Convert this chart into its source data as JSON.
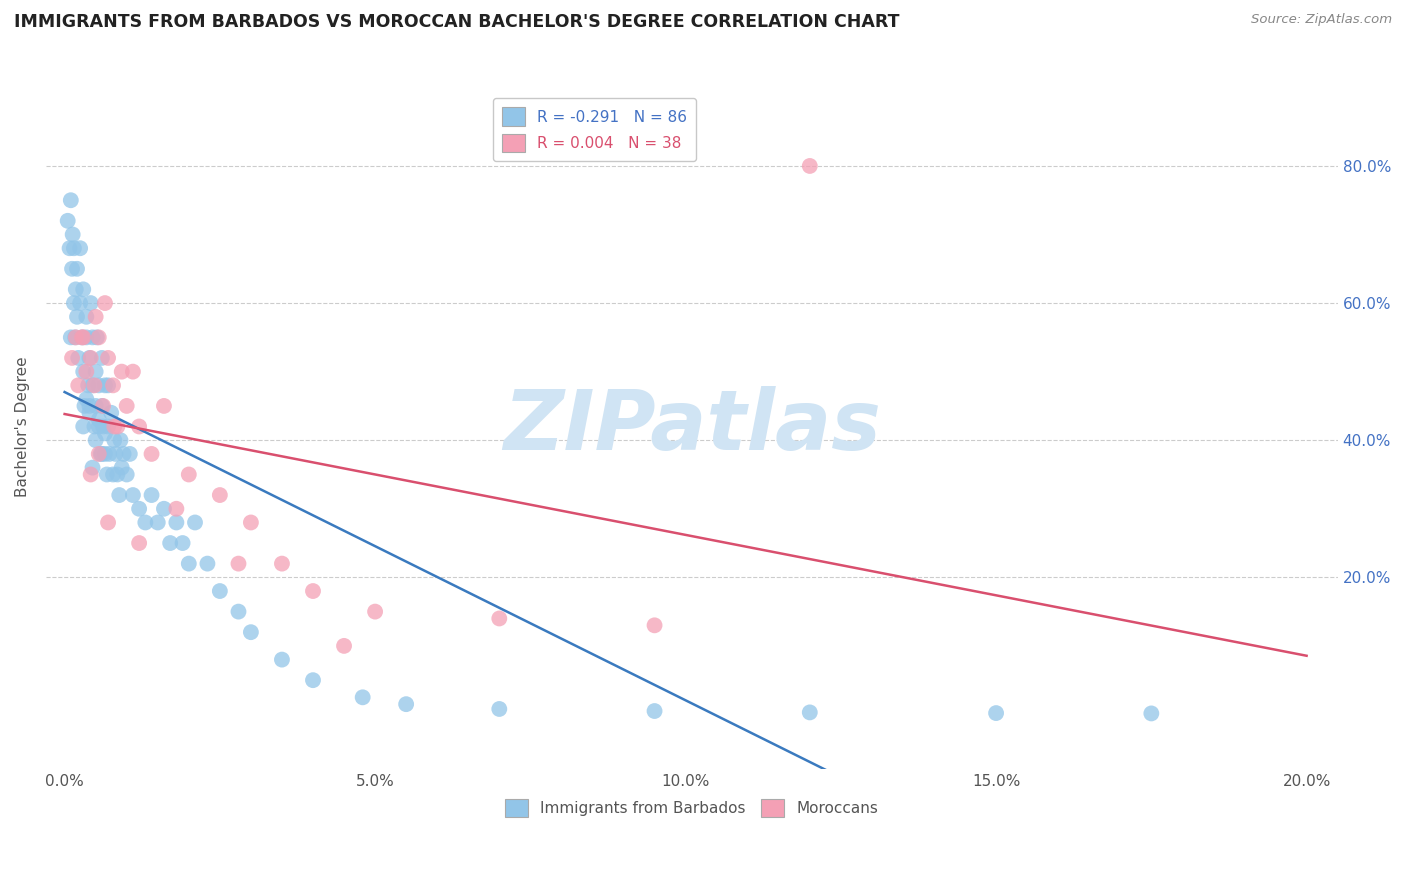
{
  "title": "IMMIGRANTS FROM BARBADOS VS MOROCCAN BACHELOR'S DEGREE CORRELATION CHART",
  "source": "Source: ZipAtlas.com",
  "ylabel": "Bachelor's Degree",
  "x_ticks": [
    0.0,
    5.0,
    10.0,
    15.0,
    20.0
  ],
  "y_ticks": [
    20.0,
    40.0,
    60.0,
    80.0
  ],
  "xlim": [
    -0.3,
    20.5
  ],
  "ylim": [
    -8,
    92
  ],
  "blue_color": "#92c5e8",
  "pink_color": "#f4a0b5",
  "blue_line_color": "#3a7abf",
  "pink_line_color": "#d94f6e",
  "tick_color": "#4472c4",
  "watermark": "ZIPatlas",
  "watermark_color": "#d0e4f4",
  "legend_text_1": "R = -0.291   N = 86",
  "legend_text_2": "R = 0.004   N = 38",
  "bottom_legend_1": "Immigrants from Barbados",
  "bottom_legend_2": "Moroccans",
  "blue_scatter_x": [
    0.05,
    0.08,
    0.1,
    0.1,
    0.12,
    0.13,
    0.15,
    0.15,
    0.17,
    0.18,
    0.2,
    0.2,
    0.22,
    0.25,
    0.25,
    0.28,
    0.3,
    0.3,
    0.32,
    0.35,
    0.35,
    0.38,
    0.4,
    0.4,
    0.42,
    0.45,
    0.45,
    0.48,
    0.5,
    0.5,
    0.52,
    0.55,
    0.55,
    0.58,
    0.6,
    0.6,
    0.62,
    0.65,
    0.65,
    0.68,
    0.7,
    0.7,
    0.72,
    0.75,
    0.78,
    0.8,
    0.82,
    0.85,
    0.88,
    0.9,
    0.92,
    0.95,
    1.0,
    1.05,
    1.1,
    1.2,
    1.3,
    1.4,
    1.5,
    1.6,
    1.7,
    1.8,
    1.9,
    2.0,
    2.1,
    2.3,
    2.5,
    2.8,
    3.0,
    3.5,
    4.0,
    4.8,
    5.5,
    7.0,
    9.5,
    12.0,
    15.0,
    17.5,
    0.3,
    0.5,
    0.4,
    0.6,
    0.35,
    0.45,
    0.55,
    0.65
  ],
  "blue_scatter_y": [
    72.0,
    68.0,
    75.0,
    55.0,
    65.0,
    70.0,
    68.0,
    60.0,
    55.0,
    62.0,
    58.0,
    65.0,
    52.0,
    60.0,
    68.0,
    55.0,
    50.0,
    62.0,
    45.0,
    55.0,
    58.0,
    48.0,
    52.0,
    45.0,
    60.0,
    48.0,
    55.0,
    42.0,
    50.0,
    45.0,
    55.0,
    42.0,
    48.0,
    38.0,
    45.0,
    52.0,
    42.0,
    38.0,
    48.0,
    35.0,
    42.0,
    48.0,
    38.0,
    44.0,
    35.0,
    40.0,
    38.0,
    35.0,
    32.0,
    40.0,
    36.0,
    38.0,
    35.0,
    38.0,
    32.0,
    30.0,
    28.0,
    32.0,
    28.0,
    30.0,
    25.0,
    28.0,
    25.0,
    22.0,
    28.0,
    22.0,
    18.0,
    15.0,
    12.0,
    8.0,
    5.0,
    2.5,
    1.5,
    0.8,
    0.5,
    0.3,
    0.2,
    0.15,
    42.0,
    40.0,
    44.0,
    38.0,
    46.0,
    36.0,
    43.0,
    41.0
  ],
  "pink_scatter_x": [
    0.12,
    0.18,
    0.22,
    0.28,
    0.35,
    0.42,
    0.48,
    0.55,
    0.62,
    0.7,
    0.78,
    0.85,
    0.92,
    1.0,
    1.1,
    1.2,
    1.4,
    1.6,
    1.8,
    2.0,
    2.5,
    3.0,
    3.5,
    4.0,
    5.0,
    7.0,
    9.5,
    12.0,
    0.3,
    0.5,
    0.65,
    0.8,
    0.55,
    0.42,
    0.7,
    1.2,
    2.8,
    4.5
  ],
  "pink_scatter_y": [
    52.0,
    55.0,
    48.0,
    55.0,
    50.0,
    52.0,
    48.0,
    55.0,
    45.0,
    52.0,
    48.0,
    42.0,
    50.0,
    45.0,
    50.0,
    42.0,
    38.0,
    45.0,
    30.0,
    35.0,
    32.0,
    28.0,
    22.0,
    18.0,
    15.0,
    14.0,
    13.0,
    80.0,
    55.0,
    58.0,
    60.0,
    42.0,
    38.0,
    35.0,
    28.0,
    25.0,
    22.0,
    10.0
  ]
}
